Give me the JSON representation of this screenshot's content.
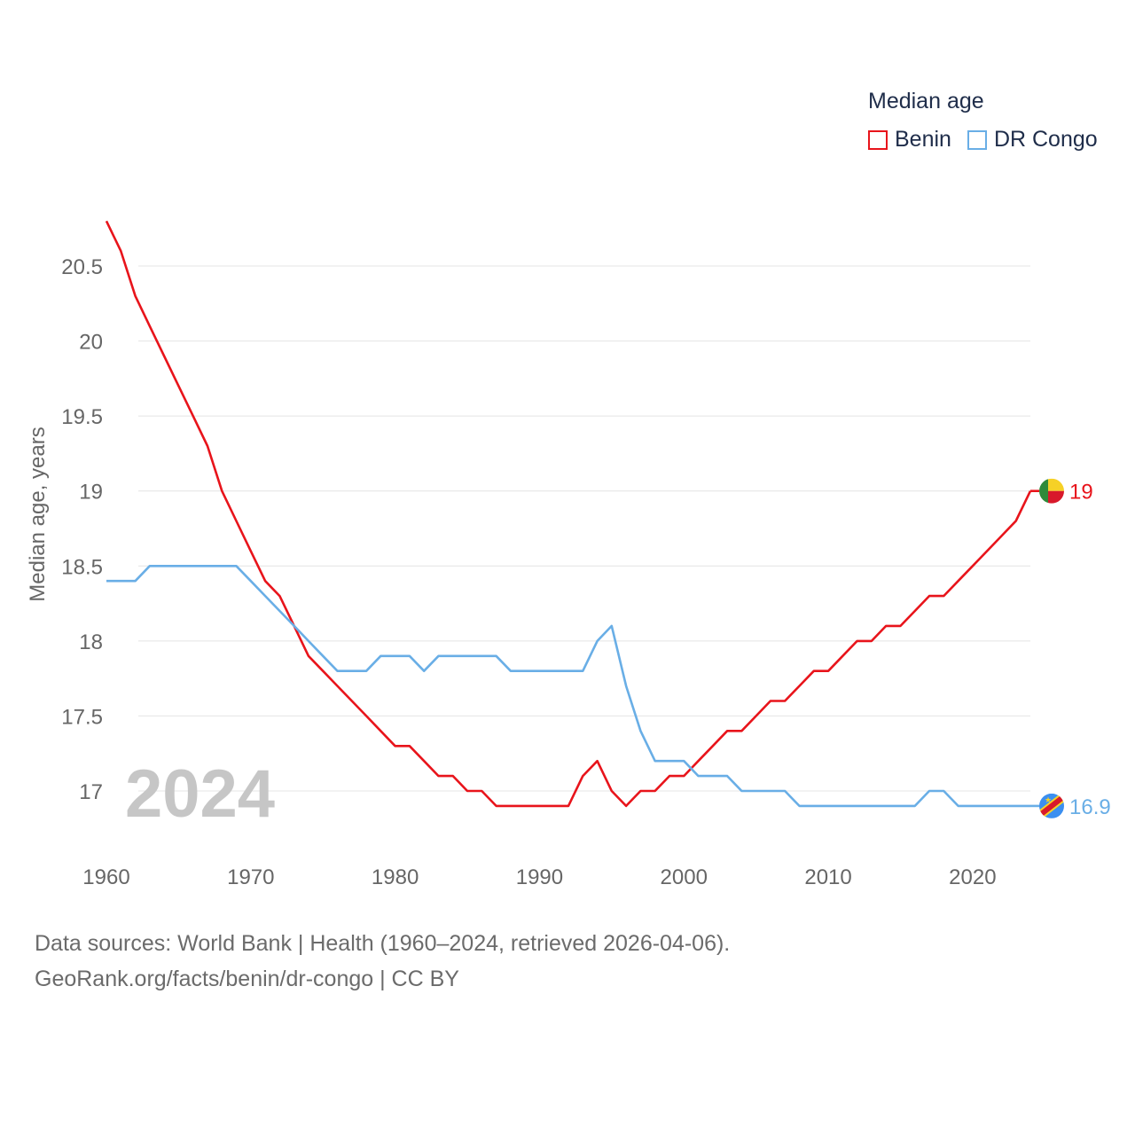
{
  "legend": {
    "title": "Median age",
    "items": [
      {
        "label": "Benin",
        "color": "#e8141b"
      },
      {
        "label": "DR Congo",
        "color": "#69aee6"
      }
    ]
  },
  "year_label": "2024",
  "footer": {
    "line1": "Data sources: World Bank | Health (1960–2024, retrieved 2026-04-06).",
    "line2": "GeoRank.org/facts/benin/dr-congo | CC BY"
  },
  "chart_data": {
    "type": "line",
    "title": "Median age",
    "xlabel": "",
    "ylabel": "Median age, years",
    "xlim": [
      1960,
      2024
    ],
    "ylim": [
      16.6,
      20.85
    ],
    "x_ticks": [
      "1960",
      "1970",
      "1980",
      "1990",
      "2000",
      "2010",
      "2020"
    ],
    "y_ticks": [
      "17",
      "17.5",
      "18",
      "18.5",
      "19",
      "19.5",
      "20",
      "20.5"
    ],
    "grid": true,
    "legend_position": "top-right",
    "x": [
      1960,
      1961,
      1962,
      1963,
      1964,
      1965,
      1966,
      1967,
      1968,
      1969,
      1970,
      1971,
      1972,
      1973,
      1974,
      1975,
      1976,
      1977,
      1978,
      1979,
      1980,
      1981,
      1982,
      1983,
      1984,
      1985,
      1986,
      1987,
      1988,
      1989,
      1990,
      1991,
      1992,
      1993,
      1994,
      1995,
      1996,
      1997,
      1998,
      1999,
      2000,
      2001,
      2002,
      2003,
      2004,
      2005,
      2006,
      2007,
      2008,
      2009,
      2010,
      2011,
      2012,
      2013,
      2014,
      2015,
      2016,
      2017,
      2018,
      2019,
      2020,
      2021,
      2022,
      2023,
      2024
    ],
    "series": [
      {
        "name": "Benin",
        "color": "#e8141b",
        "end_label": "19",
        "values": [
          20.8,
          20.6,
          20.3,
          20.1,
          19.9,
          19.7,
          19.5,
          19.3,
          19.0,
          18.8,
          18.6,
          18.4,
          18.3,
          18.1,
          17.9,
          17.8,
          17.7,
          17.6,
          17.5,
          17.4,
          17.3,
          17.3,
          17.2,
          17.1,
          17.1,
          17.0,
          17.0,
          16.9,
          16.9,
          16.9,
          16.9,
          16.9,
          16.9,
          17.1,
          17.2,
          17.0,
          16.9,
          17.0,
          17.0,
          17.1,
          17.1,
          17.2,
          17.3,
          17.4,
          17.4,
          17.5,
          17.6,
          17.6,
          17.7,
          17.8,
          17.8,
          17.9,
          18.0,
          18.0,
          18.1,
          18.1,
          18.2,
          18.3,
          18.3,
          18.4,
          18.5,
          18.6,
          18.7,
          18.8,
          19.0
        ]
      },
      {
        "name": "DR Congo",
        "color": "#69aee6",
        "end_label": "16.9",
        "values": [
          18.4,
          18.4,
          18.4,
          18.5,
          18.5,
          18.5,
          18.5,
          18.5,
          18.5,
          18.5,
          18.4,
          18.3,
          18.2,
          18.1,
          18.0,
          17.9,
          17.8,
          17.8,
          17.8,
          17.9,
          17.9,
          17.9,
          17.8,
          17.9,
          17.9,
          17.9,
          17.9,
          17.9,
          17.8,
          17.8,
          17.8,
          17.8,
          17.8,
          17.8,
          18.0,
          18.1,
          17.7,
          17.4,
          17.2,
          17.2,
          17.2,
          17.1,
          17.1,
          17.1,
          17.0,
          17.0,
          17.0,
          17.0,
          16.9,
          16.9,
          16.9,
          16.9,
          16.9,
          16.9,
          16.9,
          16.9,
          16.9,
          17.0,
          17.0,
          16.9,
          16.9,
          16.9,
          16.9,
          16.9,
          16.9
        ]
      }
    ]
  }
}
